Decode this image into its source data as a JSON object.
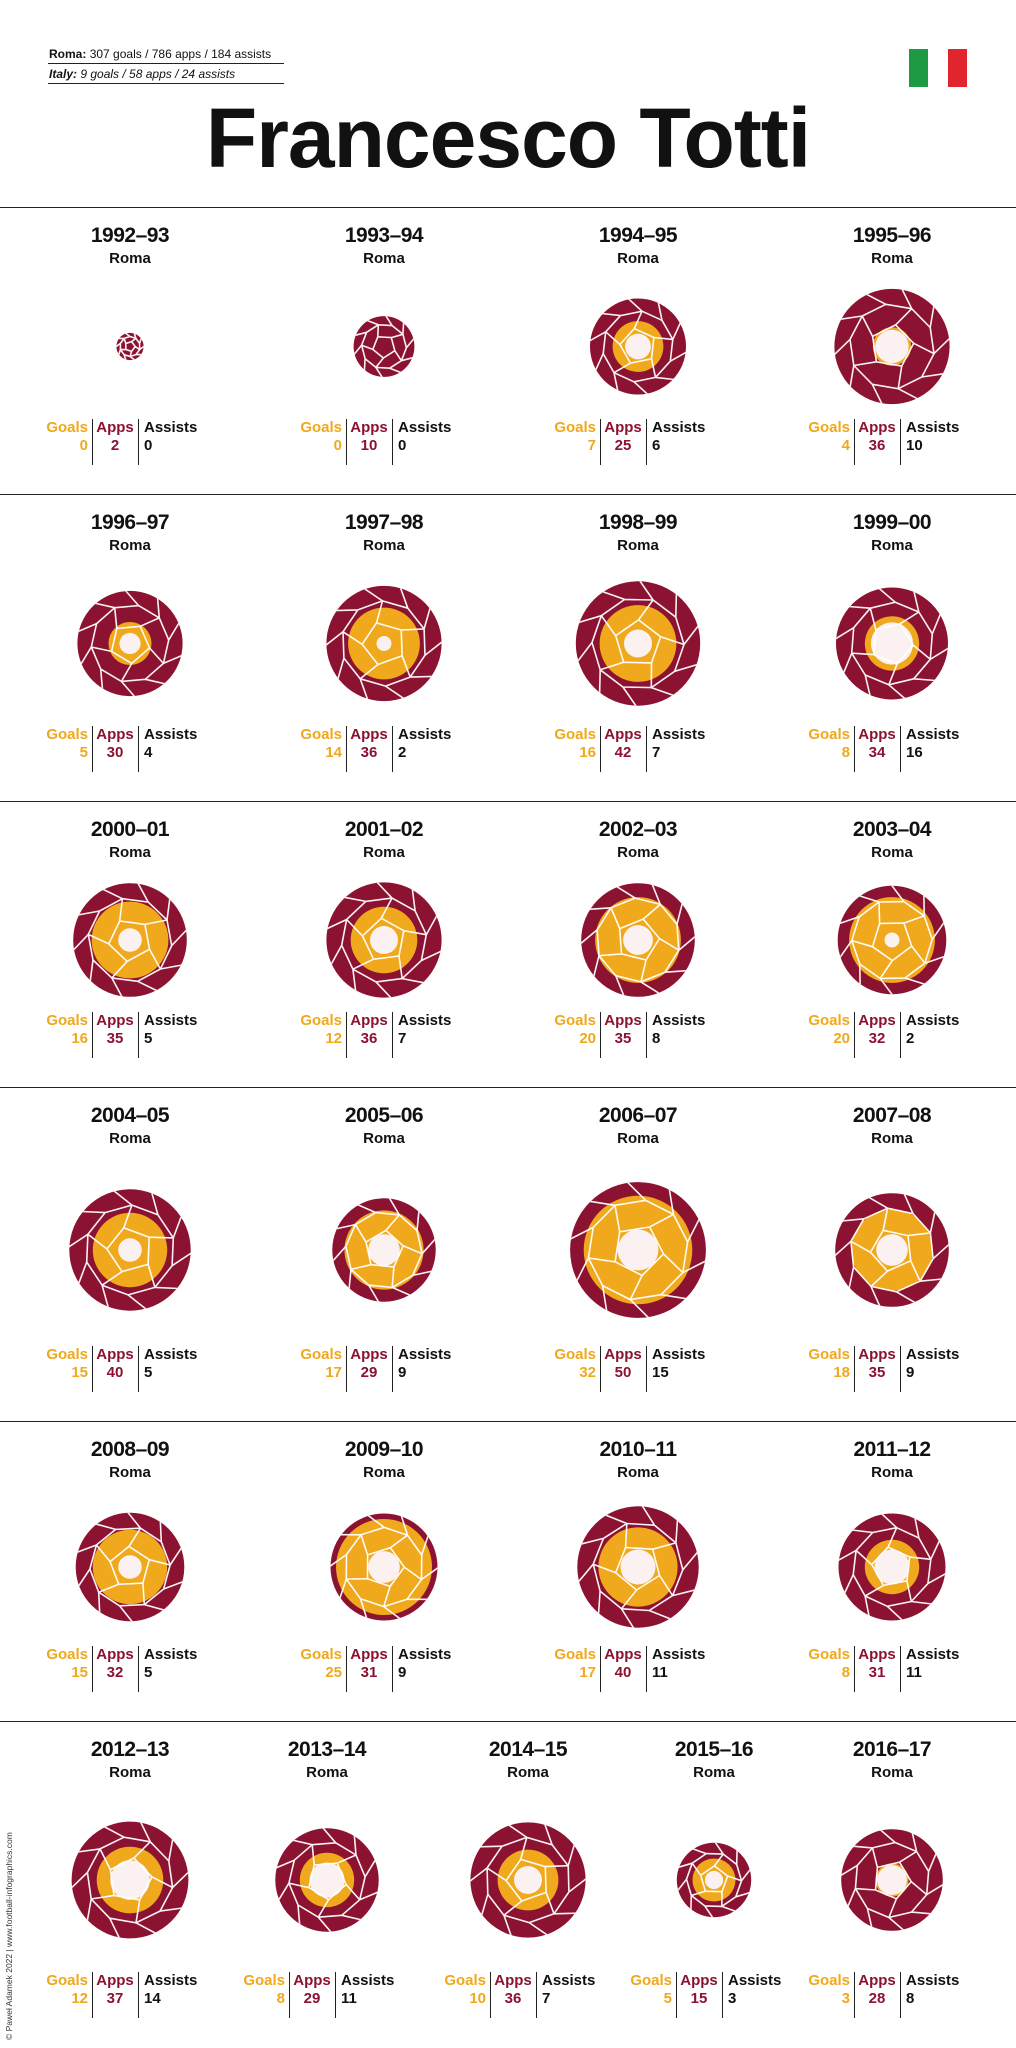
{
  "header": {
    "roma_label": "Roma:",
    "roma_text": "307 goals / 786 apps / 184 assists",
    "italy_label": "Italy:",
    "italy_text": "9 goals / 58 apps / 24 assists",
    "title": "Francesco Totti"
  },
  "flag_colors": [
    "#1e9a45",
    "#ffffff",
    "#e1252f"
  ],
  "colors": {
    "apps": "#8b1230",
    "goals": "#f0a81c",
    "assists": "#fbf1f1",
    "seam": "#ffffff",
    "rule": "#222222"
  },
  "labels": {
    "goals": "Goals",
    "apps": "Apps",
    "assists": "Assists"
  },
  "credit": "© Paweł Adamek 2022  |  www.football-infographics.com",
  "chart_data": {
    "type": "nested-circles",
    "title": "Francesco Totti",
    "encoding": "outer circle area = appearances, orange circle = goals, white circle = assists",
    "seasons": [
      {
        "season": "1992–93",
        "club": "Roma",
        "goals": "0",
        "apps": "2",
        "assists": "0"
      },
      {
        "season": "1993–94",
        "club": "Roma",
        "goals": "0",
        "apps": "10",
        "assists": "0"
      },
      {
        "season": "1994–95",
        "club": "Roma",
        "goals": "7",
        "apps": "25",
        "assists": "6"
      },
      {
        "season": "1995–96",
        "club": "Roma",
        "goals": "4",
        "apps": "36",
        "assists": "10"
      },
      {
        "season": "1996–97",
        "club": "Roma",
        "goals": "5",
        "apps": "30",
        "assists": "4"
      },
      {
        "season": "1997–98",
        "club": "Roma",
        "goals": "14",
        "apps": "36",
        "assists": "2"
      },
      {
        "season": "1998–99",
        "club": "Roma",
        "goals": "16",
        "apps": "42",
        "assists": "7"
      },
      {
        "season": "1999–00",
        "club": "Roma",
        "goals": "8",
        "apps": "34",
        "assists": "16"
      },
      {
        "season": "2000–01",
        "club": "Roma",
        "goals": "16",
        "apps": "35",
        "assists": "5"
      },
      {
        "season": "2001–02",
        "club": "Roma",
        "goals": "12",
        "apps": "36",
        "assists": "7"
      },
      {
        "season": "2002–03",
        "club": "Roma",
        "goals": "20",
        "apps": "35",
        "assists": "8"
      },
      {
        "season": "2003–04",
        "club": "Roma",
        "goals": "20",
        "apps": "32",
        "assists": "2"
      },
      {
        "season": "2004–05",
        "club": "Roma",
        "goals": "15",
        "apps": "40",
        "assists": "5"
      },
      {
        "season": "2005–06",
        "club": "Roma",
        "goals": "17",
        "apps": "29",
        "assists": "9"
      },
      {
        "season": "2006–07",
        "club": "Roma",
        "goals": "32",
        "apps": "50",
        "assists": "15"
      },
      {
        "season": "2007–08",
        "club": "Roma",
        "goals": "18",
        "apps": "35",
        "assists": "9"
      },
      {
        "season": "2008–09",
        "club": "Roma",
        "goals": "15",
        "apps": "32",
        "assists": "5"
      },
      {
        "season": "2009–10",
        "club": "Roma",
        "goals": "25",
        "apps": "31",
        "assists": "9"
      },
      {
        "season": "2010–11",
        "club": "Roma",
        "goals": "17",
        "apps": "40",
        "assists": "11"
      },
      {
        "season": "2011–12",
        "club": "Roma",
        "goals": "8",
        "apps": "31",
        "assists": "11"
      },
      {
        "season": "2012–13",
        "club": "Roma",
        "goals": "12",
        "apps": "37",
        "assists": "14"
      },
      {
        "season": "2013–14",
        "club": "Roma",
        "goals": "8",
        "apps": "29",
        "assists": "11"
      },
      {
        "season": "2014–15",
        "club": "Roma",
        "goals": "10",
        "apps": "36",
        "assists": "7"
      },
      {
        "season": "2015–16",
        "club": "Roma",
        "goals": "5",
        "apps": "15",
        "assists": "3"
      },
      {
        "season": "2016–17",
        "club": "Roma",
        "goals": "3",
        "apps": "28",
        "assists": "8"
      }
    ]
  }
}
